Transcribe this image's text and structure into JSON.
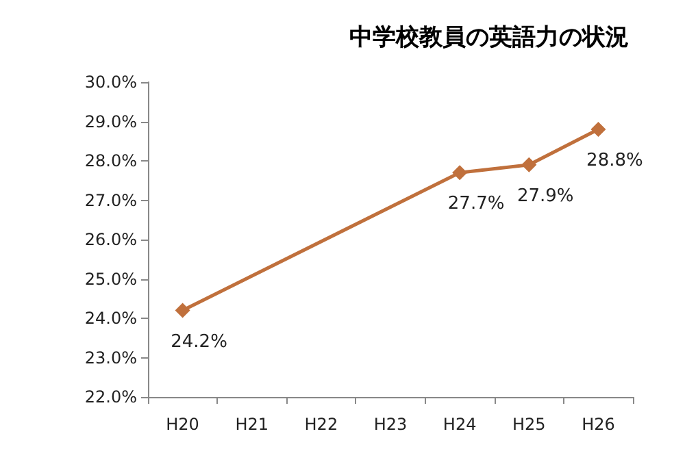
{
  "chart_data": {
    "type": "line",
    "title": "中学校教員の英語力の状況",
    "categories": [
      "H20",
      "H21",
      "H22",
      "H23",
      "H24",
      "H25",
      "H26"
    ],
    "series": [
      {
        "color": "#c0703c",
        "values": [
          24.2,
          null,
          null,
          null,
          27.7,
          27.9,
          28.8
        ],
        "value_labels": [
          "24.2%",
          null,
          null,
          null,
          "27.7%",
          "27.9%",
          "28.8%"
        ]
      }
    ],
    "ylim": [
      22,
      30
    ],
    "yticks": [
      {
        "value": 22,
        "label": "22.0%"
      },
      {
        "value": 23,
        "label": "23.0%"
      },
      {
        "value": 24,
        "label": "24.0%"
      },
      {
        "value": 25,
        "label": "25.0%"
      },
      {
        "value": 26,
        "label": "26.0%"
      },
      {
        "value": 27,
        "label": "27.0%"
      },
      {
        "value": 28,
        "label": "28.0%"
      },
      {
        "value": 29,
        "label": "29.0%"
      },
      {
        "value": 30,
        "label": "30.0%"
      }
    ],
    "grid": false,
    "marker": "diamond",
    "line_style": "solid"
  }
}
